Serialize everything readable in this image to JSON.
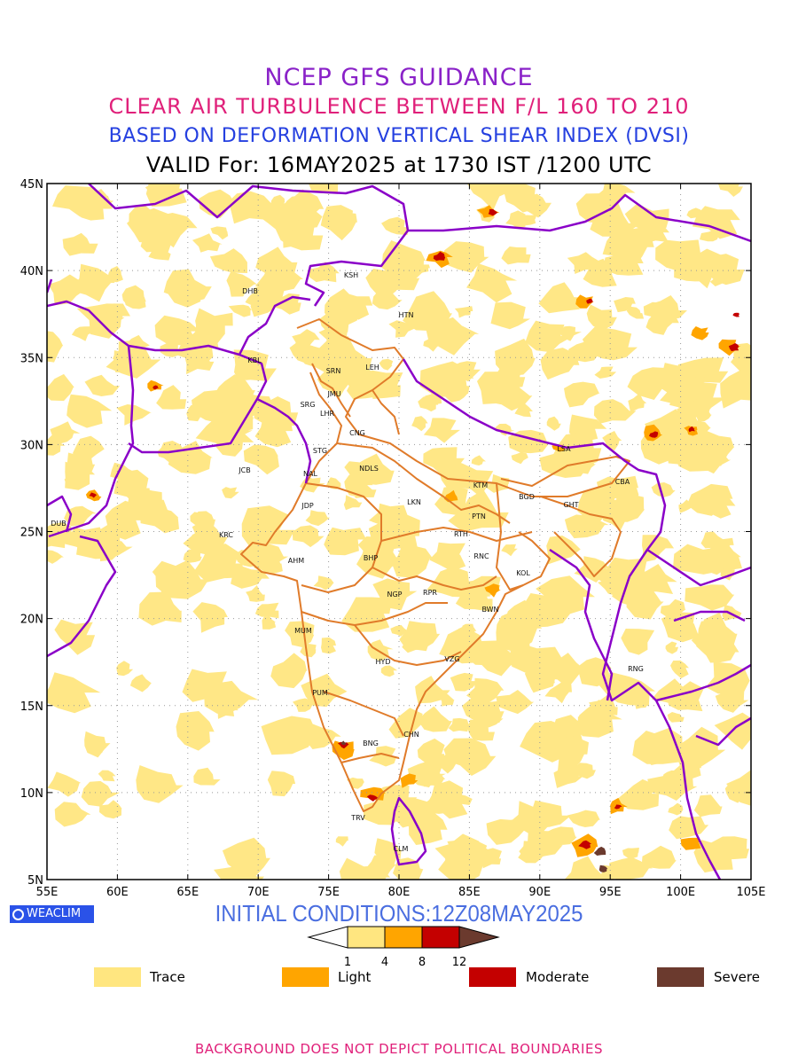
{
  "header": {
    "line1": "NCEP GFS GUIDANCE",
    "line2": "CLEAR AIR TURBULENCE BETWEEN F/L 160 TO 210",
    "line3": "BASED ON DEFORMATION VERTICAL SHEAR INDEX (DVSI)",
    "line4": "VALID For: 16MAY2025 at 1730 IST /1200 UTC"
  },
  "axes": {
    "lon_labels": [
      "55E",
      "60E",
      "65E",
      "70E",
      "75E",
      "80E",
      "85E",
      "90E",
      "95E",
      "100E",
      "105E"
    ],
    "lat_labels": [
      "45N",
      "40N",
      "35N",
      "30N",
      "25N",
      "20N",
      "15N",
      "10N",
      "5N"
    ]
  },
  "stations": [
    {
      "code": "KSH"
    },
    {
      "code": "DHB"
    },
    {
      "code": "HTN"
    },
    {
      "code": "KBL"
    },
    {
      "code": "SRN"
    },
    {
      "code": "LEH"
    },
    {
      "code": "JMU"
    },
    {
      "code": "SRG"
    },
    {
      "code": "LHR"
    },
    {
      "code": "CNG"
    },
    {
      "code": "LSA"
    },
    {
      "code": "STG"
    },
    {
      "code": "JCB"
    },
    {
      "code": "NDLS"
    },
    {
      "code": "NAL"
    },
    {
      "code": "KTM"
    },
    {
      "code": "CBA"
    },
    {
      "code": "BGD"
    },
    {
      "code": "GHT"
    },
    {
      "code": "LKN"
    },
    {
      "code": "JDP"
    },
    {
      "code": "PTN"
    },
    {
      "code": "DUB"
    },
    {
      "code": "RTH"
    },
    {
      "code": "KRC"
    },
    {
      "code": "RNC"
    },
    {
      "code": "AHM"
    },
    {
      "code": "BHP"
    },
    {
      "code": "KOL"
    },
    {
      "code": "NGP"
    },
    {
      "code": "RPR"
    },
    {
      "code": "BWN"
    },
    {
      "code": "MUM"
    },
    {
      "code": "HYD"
    },
    {
      "code": "VZG"
    },
    {
      "code": "RNG"
    },
    {
      "code": "PUM"
    },
    {
      "code": "CHN"
    },
    {
      "code": "BNG"
    },
    {
      "code": "TRV"
    },
    {
      "code": "CLM"
    }
  ],
  "branding": {
    "logo_text": "WEACLIM"
  },
  "initial_conditions": "INITIAL CONDITIONS:12Z08MAY2025",
  "colorbar": {
    "ticks": [
      "1",
      "4",
      "8",
      "12"
    ],
    "colors": [
      "#ffe680",
      "#ffa500",
      "#c40000",
      "#6b3a2e"
    ]
  },
  "legend": [
    {
      "label": "Trace",
      "color": "#ffe680"
    },
    {
      "label": "Light",
      "color": "#ffa500"
    },
    {
      "label": "Moderate",
      "color": "#c40000"
    },
    {
      "label": "Severe",
      "color": "#6b3a2e"
    }
  ],
  "footer": "BACKGROUND DOES NOT DEPICT POLITICAL BOUNDARIES",
  "colors": {
    "boundary": "#8a00c8",
    "state_lines": "#e07b2a",
    "grid": "#999999"
  }
}
